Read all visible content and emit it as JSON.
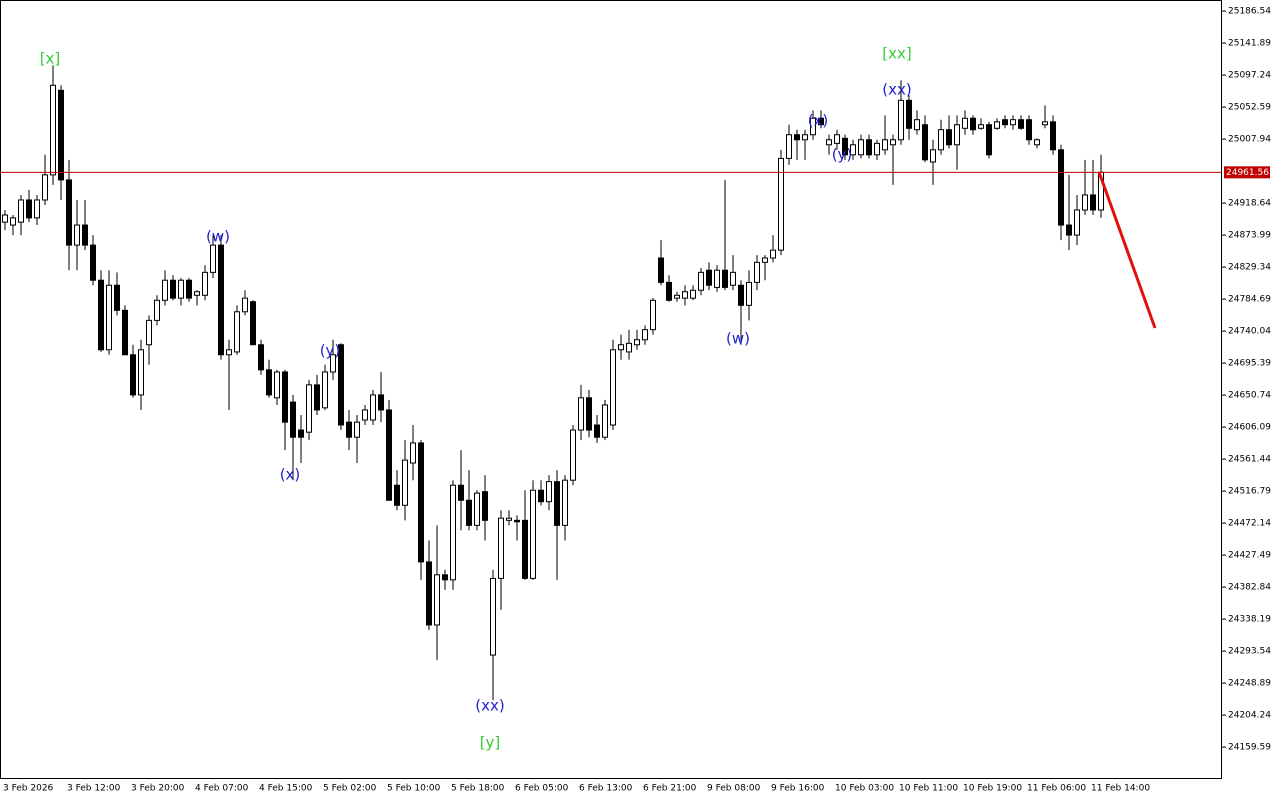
{
  "chart_data": {
    "type": "candlestick",
    "categories": [
      "3 Feb 2026",
      null,
      null,
      null,
      null,
      null,
      null,
      null,
      "3 Feb 12:00",
      null,
      null,
      null,
      null,
      null,
      null,
      null,
      "3 Feb 20:00",
      null,
      null,
      null,
      null,
      null,
      null,
      null,
      "4 Feb 07:00",
      null,
      null,
      null,
      null,
      null,
      null,
      null,
      "4 Feb 15:00",
      null,
      null,
      null,
      null,
      null,
      null,
      null,
      "5 Feb 02:00",
      null,
      null,
      null,
      null,
      null,
      null,
      null,
      "5 Feb 10:00",
      null,
      null,
      null,
      null,
      null,
      null,
      null,
      "5 Feb 18:00",
      null,
      null,
      null,
      null,
      null,
      null,
      null,
      "6 Feb 05:00",
      null,
      null,
      null,
      null,
      null,
      null,
      null,
      "6 Feb 13:00",
      null,
      null,
      null,
      null,
      null,
      null,
      null,
      "6 Feb 21:00",
      null,
      null,
      null,
      null,
      null,
      null,
      null,
      "9 Feb 08:00",
      null,
      null,
      null,
      null,
      null,
      null,
      null,
      "9 Feb 16:00",
      null,
      null,
      null,
      null,
      null,
      null,
      null,
      "10 Feb 03:00",
      null,
      null,
      null,
      null,
      null,
      null,
      null,
      "10 Feb 11:00",
      null,
      null,
      null,
      null,
      null,
      null,
      null,
      "10 Feb 19:00",
      null,
      null,
      null,
      null,
      null,
      null,
      null,
      "11 Feb 06:00",
      null,
      null,
      null,
      null,
      null,
      null,
      null,
      "11 Feb 14:00",
      null
    ],
    "open": [
      24892,
      24888,
      24892,
      24923,
      24898,
      24923,
      24958,
      25076,
      24951,
      24860,
      24888,
      24860,
      24811,
      24714,
      24804,
      24769,
      24707,
      24651,
      24721,
      24755,
      24783,
      24811,
      24786,
      24811,
      24790,
      24790,
      24822,
      24860,
      24707,
      24711,
      24767,
      24781,
      24721,
      24686,
      24647,
      24683,
      24641,
      24602,
      24599,
      24665,
      24633,
      24683,
      24721,
      24613,
      24592,
      24616,
      24616,
      24651,
      24630,
      24525,
      24497,
      24556,
      24584,
      24418,
      24330,
      24400,
      24393,
      24525,
      24504,
      24469,
      24516,
      24288,
      24395,
      24476,
      24476,
      24476,
      24395,
      24518,
      24502,
      24530,
      24469,
      24532,
      24602,
      24647,
      24609,
      24592,
      24609,
      24714,
      24711,
      24721,
      24728,
      24742,
      24842,
      24808,
      24786,
      24786,
      24786,
      24797,
      24825,
      24801,
      24825,
      24804,
      24804,
      24776,
      24808,
      24836,
      24842,
      24853,
      24981,
      25014,
      25007,
      25014,
      25037,
      25000,
      25002,
      25009,
      24986,
      24986,
      25007,
      24986,
      24993,
      25000,
      25007,
      25062,
      25021,
      25028,
      24976,
      24993,
      25021,
      25000,
      25023,
      25037,
      25023,
      25028,
      25023,
      25035,
      25028,
      25035,
      25035,
      25000,
      25028,
      25032,
      24993,
      24888,
      24874,
      24909,
      24930,
      24909
    ],
    "high": [
      24909,
      24902,
      24930,
      24937,
      24930,
      24986,
      25111,
      25083,
      24979,
      24923,
      24923,
      24874,
      24825,
      24825,
      24822,
      24776,
      24721,
      24728,
      24762,
      24790,
      24825,
      24818,
      24814,
      24814,
      24797,
      24832,
      24874,
      24874,
      24728,
      24776,
      24797,
      24783,
      24728,
      24700,
      24686,
      24686,
      24651,
      24623,
      24672,
      24679,
      24693,
      24728,
      24723,
      24630,
      24623,
      24637,
      24658,
      24683,
      24644,
      24546,
      24588,
      24609,
      24588,
      24448,
      24469,
      24407,
      24532,
      24574,
      24546,
      24518,
      24539,
      24407,
      24490,
      24490,
      24483,
      24518,
      24532,
      24532,
      24539,
      24546,
      24539,
      24609,
      24665,
      24658,
      24623,
      24644,
      24728,
      24735,
      24742,
      24742,
      24748,
      24786,
      24867,
      24818,
      24795,
      24804,
      24804,
      24828,
      24836,
      24832,
      24951,
      24846,
      24811,
      24825,
      24846,
      24846,
      24874,
      24993,
      25028,
      25021,
      25021,
      25048,
      25048,
      25014,
      25021,
      25014,
      25007,
      25014,
      25014,
      25007,
      25041,
      25014,
      25090,
      25069,
      25048,
      25041,
      25007,
      25035,
      25041,
      25041,
      25048,
      25041,
      25037,
      25032,
      25037,
      25041,
      25041,
      25041,
      25041,
      25009,
      25055,
      25041,
      25000,
      24958,
      24930,
      24979,
      24979,
      24986
    ],
    "low": [
      24881,
      24874,
      24874,
      24892,
      24888,
      24916,
      24944,
      24923,
      24825,
      24825,
      24853,
      24804,
      24711,
      24707,
      24762,
      24707,
      24647,
      24630,
      24693,
      24748,
      24776,
      24783,
      24776,
      24781,
      24776,
      24783,
      24814,
      24700,
      24630,
      24707,
      24762,
      24721,
      24679,
      24647,
      24637,
      24574,
      24532,
      24556,
      24588,
      24623,
      24630,
      24672,
      24602,
      24574,
      24556,
      24609,
      24609,
      24613,
      24504,
      24490,
      24476,
      24532,
      24393,
      24323,
      24281,
      24379,
      24379,
      24462,
      24462,
      24462,
      24448,
      24225,
      24351,
      24469,
      24448,
      24393,
      24393,
      24497,
      24490,
      24393,
      24448,
      24525,
      24588,
      24592,
      24584,
      24588,
      24602,
      24700,
      24700,
      24714,
      24721,
      24735,
      24804,
      24781,
      24781,
      24776,
      24783,
      24790,
      24797,
      24795,
      24797,
      24797,
      24721,
      24755,
      24797,
      24811,
      24836,
      24846,
      24972,
      24979,
      24979,
      25007,
      25023,
      24986,
      24993,
      24979,
      24979,
      24981,
      24981,
      24979,
      24986,
      24944,
      25000,
      25007,
      25014,
      24976,
      24944,
      24986,
      24995,
      24965,
      25014,
      25014,
      25021,
      24981,
      25021,
      25023,
      25021,
      25021,
      25000,
      24995,
      25023,
      24986,
      24867,
      24853,
      24860,
      24902,
      24902,
      24898
    ],
    "close": [
      24902,
      24898,
      24923,
      24898,
      24923,
      24958,
      25083,
      24951,
      24860,
      24888,
      24860,
      24811,
      24714,
      24804,
      24769,
      24707,
      24651,
      24714,
      24755,
      24783,
      24811,
      24786,
      24811,
      24786,
      24795,
      24822,
      24860,
      24707,
      24714,
      24767,
      24786,
      24721,
      24686,
      24651,
      24683,
      24613,
      24592,
      24592,
      24665,
      24630,
      24683,
      24707,
      24609,
      24592,
      24613,
      24630,
      24651,
      24630,
      24504,
      24497,
      24560,
      24584,
      24418,
      24330,
      24400,
      24393,
      24525,
      24504,
      24469,
      24514,
      24476,
      24395,
      24479,
      24479,
      24474,
      24395,
      24518,
      24502,
      24530,
      24469,
      24532,
      24602,
      24647,
      24602,
      24592,
      24637,
      24714,
      24721,
      24723,
      24728,
      24742,
      24783,
      24808,
      24783,
      24790,
      24795,
      24797,
      24822,
      24804,
      24825,
      24801,
      24822,
      24776,
      24808,
      24836,
      24842,
      24853,
      24981,
      25014,
      25007,
      25014,
      25037,
      25028,
      25007,
      25014,
      24986,
      25000,
      25007,
      24986,
      25002,
      25007,
      25007,
      25062,
      25023,
      25035,
      24979,
      24993,
      25021,
      25000,
      25028,
      25037,
      25021,
      25028,
      24986,
      25032,
      25028,
      25035,
      25023,
      25007,
      25007,
      25032,
      24993,
      24888,
      24874,
      24909,
      24930,
      24909,
      24961.56
    ],
    "up_color": "#ffffff",
    "down_color": "#000000",
    "outline_color": "#000000",
    "ylim": [
      24116.5,
      25202
    ],
    "yticks": [
      25186.54,
      25141.89,
      25097.24,
      25052.59,
      25007.94,
      24918.64,
      24873.99,
      24829.34,
      24784.69,
      24740.04,
      24695.39,
      24650.74,
      24606.09,
      24561.44,
      24516.79,
      24472.14,
      24427.49,
      24382.84,
      24338.19,
      24293.54,
      24248.89,
      24204.24,
      24159.59
    ],
    "current_price": 24961.56,
    "current_price_color": "#c00000",
    "annotations": [
      {
        "text": "[x]",
        "color": "#33cc33"
      },
      {
        "text": "[xx]",
        "color": "#33cc33"
      },
      {
        "text": "[y]",
        "color": "#33cc33"
      },
      {
        "text": "(w)",
        "color": "#2222cc"
      },
      {
        "text": "(x)",
        "color": "#2222cc"
      },
      {
        "text": "(y)",
        "color": "#2222cc"
      },
      {
        "text": "(xx)",
        "color": "#2222cc"
      },
      {
        "text": "(w)",
        "color": "#2222cc"
      },
      {
        "text": "(x)",
        "color": "#2222cc"
      },
      {
        "text": "(y)",
        "color": "#2222cc"
      },
      {
        "text": "(xx)",
        "color": "#2222cc"
      }
    ]
  }
}
